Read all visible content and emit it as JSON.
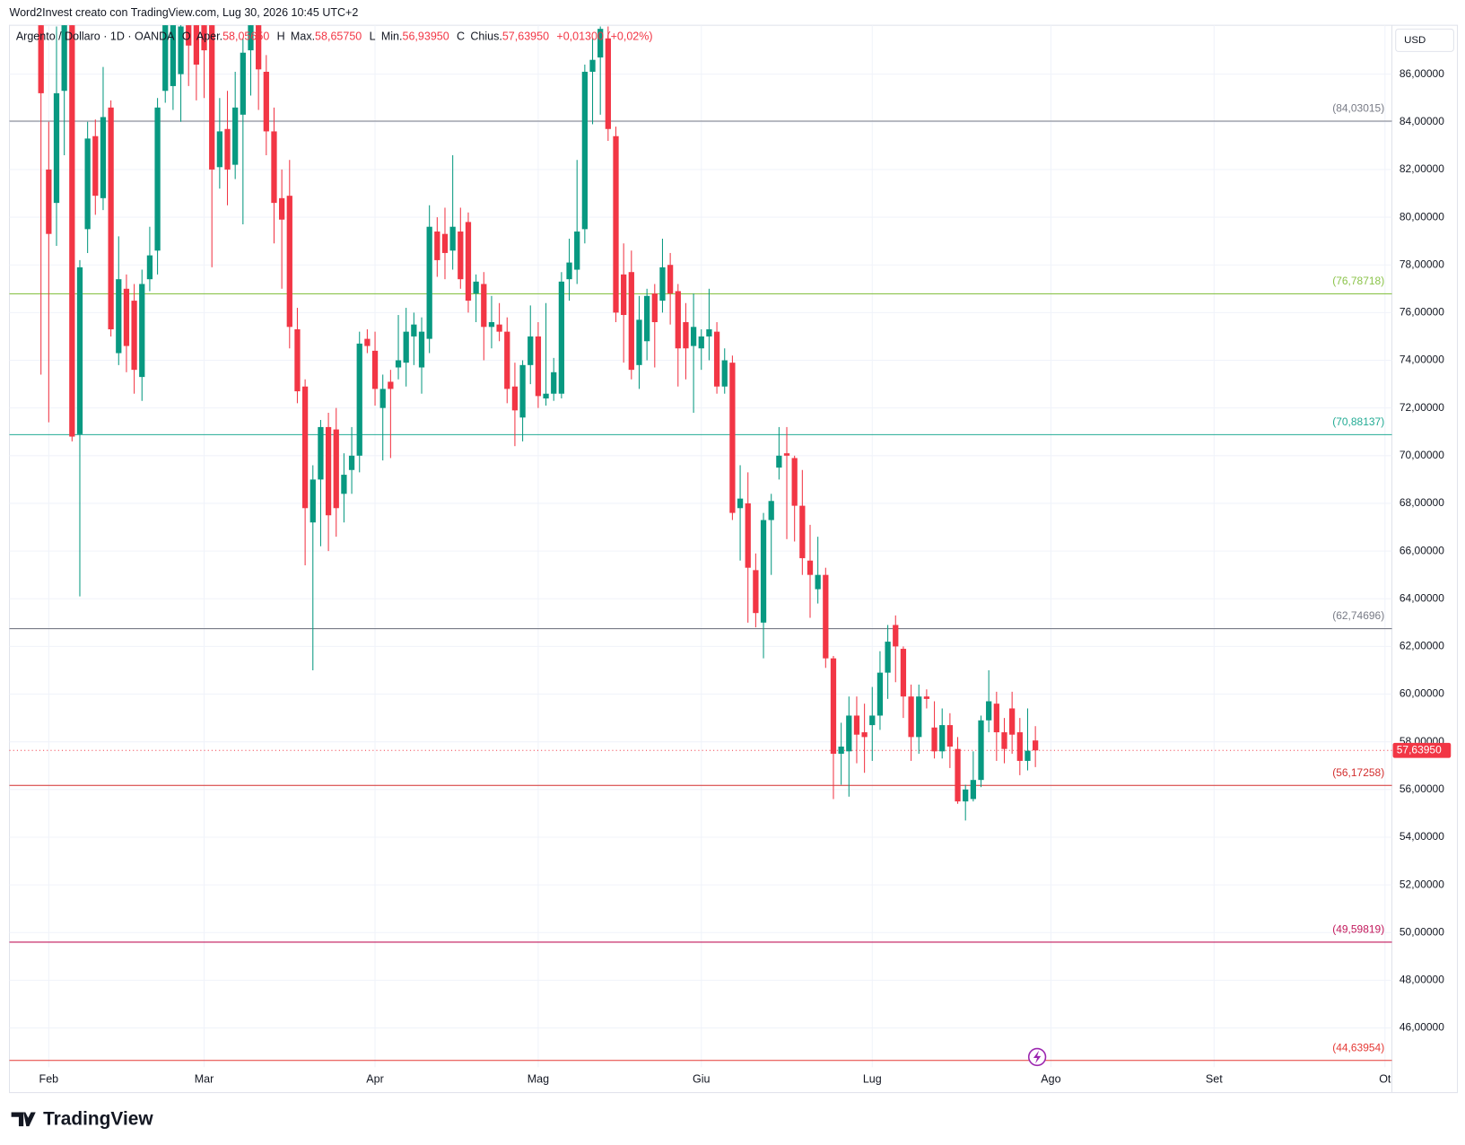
{
  "header": {
    "credit": "Word2Invest creato con TradingView.com, Lug 30, 2026 10:45 UTC+2"
  },
  "chart_data": {
    "type": "candlestick",
    "symbol": "Argento / Dollaro · 1D · OANDA",
    "legend": [
      {
        "key": "O",
        "name": "Aper.",
        "value": "58,05650"
      },
      {
        "key": "H",
        "name": "Max.",
        "value": "58,65750"
      },
      {
        "key": "L",
        "name": "Min.",
        "value": "56,93950"
      },
      {
        "key": "C",
        "name": "Chius.",
        "value": "57,63950"
      }
    ],
    "change": "+0,01300 (+0,02%)",
    "currency": "USD",
    "open": [
      89,
      82.0,
      80.6,
      85.3,
      89.5,
      70.9,
      79.5,
      83.4,
      80.8,
      84.6,
      74.3,
      77.0,
      76.5,
      73.3,
      77.4,
      78.6,
      85.3,
      85.5,
      86,
      89,
      89,
      88.5,
      89,
      82.1,
      83.7,
      82.2,
      84.3,
      87.0,
      89.2,
      86.1,
      83.6,
      80.8,
      80.9,
      75.3,
      72.9,
      67.2,
      69.0,
      71.2,
      71.1,
      68.4,
      69.4,
      70.0,
      74.9,
      74.4,
      72.0,
      73.1,
      73.7,
      73.9,
      75.0,
      73.7,
      74.9,
      79.4,
      79.3,
      78.6,
      79.4,
      79.8,
      76.8,
      77.2,
      75.4,
      75.5,
      75.2,
      72.9,
      71.6,
      73.8,
      75.0,
      72.4,
      72.6,
      72.6,
      77.4,
      77.8,
      79.5,
      86.1,
      86.7,
      87.5,
      83.4,
      77.6,
      77.7,
      73.8,
      74.8,
      76.8,
      76.5,
      78.0,
      76.9,
      75.6,
      74.6,
      74.5,
      75.0,
      75.2,
      72.9,
      73.9,
      67.8,
      68.0,
      65.2,
      63.0,
      67.3,
      69.5,
      70.1,
      69.9,
      67.9,
      65.6,
      64.4,
      65.0,
      61.5,
      57.5,
      57.6,
      59.1,
      58.4,
      58.7,
      59.1,
      60.9,
      62.9,
      61.9,
      59.9,
      58.2,
      59.9,
      58.6,
      57.6,
      58.7,
      57.7,
      55.5,
      55.6,
      56.4,
      58.9,
      59.6,
      58.4,
      59.4,
      58.4,
      57.2,
      58.0565
    ],
    "high": [
      91,
      84.0,
      88,
      91,
      91,
      78.2,
      84.0,
      84.1,
      86.3,
      84.9,
      79.2,
      77.6,
      77.2,
      77.8,
      79.6,
      85.0,
      90,
      90,
      89,
      91,
      91,
      90.5,
      91,
      85.0,
      85.3,
      86.1,
      87.5,
      91,
      91,
      86.8,
      84.6,
      82.0,
      82.4,
      76.2,
      73.2,
      69.6,
      71.5,
      71.8,
      72.0,
      70.1,
      71.2,
      75.2,
      75.3,
      75.2,
      73.4,
      73.6,
      75.9,
      76.2,
      76.0,
      75.8,
      80.5,
      80.0,
      80.4,
      82.6,
      80.4,
      80.2,
      77.6,
      77.7,
      76.7,
      76.4,
      75.8,
      73.9,
      74.0,
      76.3,
      75.6,
      76.4,
      74.1,
      77.7,
      79.1,
      82.4,
      86.4,
      87.5,
      88.0,
      88.0,
      83.8,
      78.9,
      78.6,
      76.7,
      77.0,
      77.2,
      79.1,
      78.5,
      77.2,
      76.4,
      76.8,
      75.3,
      77.0,
      75.6,
      74.5,
      74.2,
      69.6,
      69.3,
      65.9,
      67.6,
      68.4,
      71.2,
      71.2,
      70.0,
      69.4,
      67.1,
      66.6,
      65.3,
      61.6,
      58.8,
      59.9,
      59.9,
      59.6,
      60.3,
      61.8,
      62.9,
      63.3,
      62.0,
      60.4,
      60.4,
      60.2,
      59.7,
      59.4,
      59.2,
      58.2,
      56.2,
      57.6,
      59.1,
      61.0,
      60.1,
      59.0,
      60.1,
      59.0,
      59.4,
      58.6575
    ],
    "low": [
      73.4,
      71.4,
      78.8,
      82.6,
      70.6,
      64.1,
      78.5,
      80.1,
      80.3,
      75.0,
      73.8,
      73.5,
      72.6,
      72.3,
      76.9,
      77.6,
      84.8,
      84.5,
      84,
      85.5,
      84.9,
      85.0,
      77.9,
      81.2,
      80.5,
      81.6,
      79.7,
      85.1,
      84.5,
      82.6,
      78.9,
      77.0,
      74.5,
      72.2,
      65.4,
      61.0,
      66.2,
      66.0,
      66.6,
      67.2,
      68.4,
      69.3,
      74.3,
      72.1,
      69.8,
      69.9,
      73.2,
      72.9,
      73.8,
      72.6,
      74.3,
      77.5,
      77.4,
      77.8,
      77.0,
      76.0,
      75.6,
      74.0,
      74.5,
      74.8,
      72.2,
      70.4,
      70.6,
      73.0,
      72.0,
      72.1,
      72.3,
      72.4,
      76.5,
      77.2,
      78.9,
      83.9,
      84.3,
      83.2,
      75.6,
      73.9,
      73.2,
      72.8,
      74.0,
      73.7,
      76.0,
      75.5,
      72.9,
      73.2,
      71.8,
      73.6,
      74.0,
      72.6,
      72.6,
      67.3,
      65.6,
      63.0,
      62.8,
      61.5,
      65.0,
      69.0,
      66.5,
      66.4,
      65.0,
      63.2,
      63.8,
      61.1,
      55.6,
      56.2,
      55.7,
      57.1,
      56.7,
      57.2,
      58.5,
      59.8,
      60.5,
      59.0,
      57.2,
      57.5,
      59.4,
      57.3,
      57.3,
      56.9,
      55.4,
      54.7,
      55.5,
      56.1,
      58.4,
      57.2,
      57.1,
      57.5,
      56.6,
      56.8,
      56.9395
    ],
    "close": [
      85.2,
      79.3,
      85.2,
      89.5,
      70.8,
      77.9,
      83.3,
      80.9,
      84.2,
      75.3,
      77.4,
      74.6,
      73.6,
      77.2,
      78.4,
      84.6,
      88.5,
      88.8,
      88,
      87.2,
      86.4,
      87.0,
      82.0,
      83.6,
      82.0,
      84.6,
      86.9,
      89.5,
      86.2,
      83.6,
      80.6,
      79.9,
      75.4,
      72.7,
      67.8,
      69.0,
      71.2,
      67.5,
      67.8,
      69.2,
      70.0,
      74.7,
      74.6,
      72.8,
      72.8,
      72.8,
      74.0,
      75.2,
      75.5,
      75.2,
      79.6,
      78.2,
      78.5,
      79.6,
      77.4,
      76.5,
      77.3,
      75.4,
      75.6,
      75.2,
      72.8,
      71.9,
      73.8,
      75.0,
      72.5,
      72.6,
      73.5,
      77.3,
      78.1,
      79.4,
      86.1,
      86.6,
      87.9,
      83.7,
      76.0,
      75.9,
      73.6,
      75.7,
      76.7,
      75.6,
      77.9,
      76.8,
      74.5,
      74.5,
      75.4,
      75.0,
      75.3,
      72.9,
      74.0,
      67.6,
      68.2,
      65.3,
      63.4,
      67.3,
      68.1,
      70.0,
      70.0,
      67.9,
      65.7,
      65.0,
      65.0,
      61.5,
      57.5,
      57.8,
      59.1,
      58.3,
      58.2,
      59.1,
      60.9,
      62.2,
      62.0,
      59.9,
      58.2,
      59.9,
      59.8,
      57.6,
      58.7,
      57.8,
      55.5,
      56.0,
      56.4,
      58.9,
      59.7,
      58.4,
      57.7,
      58.3,
      57.2,
      57.6265,
      57.6395
    ],
    "up_color": "#089981",
    "down_color": "#f23645",
    "xlim": [
      -4.06,
      173.89
    ],
    "xticks": [
      {
        "value": 1,
        "label": "Feb"
      },
      {
        "value": 21,
        "label": "Mar"
      },
      {
        "value": 43,
        "label": "Apr"
      },
      {
        "value": 64,
        "label": "Mag"
      },
      {
        "value": 85,
        "label": "Giu"
      },
      {
        "value": 107,
        "label": "Lug"
      },
      {
        "value": 130,
        "label": "Ago"
      },
      {
        "value": 151,
        "label": "Set"
      },
      {
        "value": 173,
        "label": "Ot"
      }
    ],
    "ylim": [
      44.35,
      88.05
    ],
    "yticks": [
      {
        "value": 46,
        "label": "46,00000"
      },
      {
        "value": 48,
        "label": "48,00000"
      },
      {
        "value": 50,
        "label": "50,00000"
      },
      {
        "value": 52,
        "label": "52,00000"
      },
      {
        "value": 54,
        "label": "54,00000"
      },
      {
        "value": 56,
        "label": "56,00000"
      },
      {
        "value": 58,
        "label": "58,00000"
      },
      {
        "value": 60,
        "label": "60,00000"
      },
      {
        "value": 62,
        "label": "62,00000"
      },
      {
        "value": 64,
        "label": "64,00000"
      },
      {
        "value": 66,
        "label": "66,00000"
      },
      {
        "value": 68,
        "label": "68,00000"
      },
      {
        "value": 70,
        "label": "70,00000"
      },
      {
        "value": 72,
        "label": "72,00000"
      },
      {
        "value": 74,
        "label": "74,00000"
      },
      {
        "value": 76,
        "label": "76,00000"
      },
      {
        "value": 78,
        "label": "78,00000"
      },
      {
        "value": 80,
        "label": "80,00000"
      },
      {
        "value": 82,
        "label": "82,00000"
      },
      {
        "value": 84,
        "label": "84,00000"
      },
      {
        "value": 86,
        "label": "86,00000"
      }
    ],
    "grid": true,
    "levels": [
      {
        "value": 84.03015,
        "label": "(84,03015)",
        "color": "#787b86"
      },
      {
        "value": 76.78718,
        "label": "(76,78718)",
        "color": "#8bc34a"
      },
      {
        "value": 70.88137,
        "label": "(70,88137)",
        "color": "#22ab94"
      },
      {
        "value": 62.74696,
        "label": "(62,74696)",
        "color": "#787b86"
      },
      {
        "value": 56.17258,
        "label": "(56,17258)",
        "color": "#d32f2f"
      },
      {
        "value": 49.59819,
        "label": "(49,59819)",
        "color": "#c2185b"
      },
      {
        "value": 44.63954,
        "label": "(44,63954)",
        "color": "#e53935"
      }
    ],
    "last_price": {
      "value": 57.6395,
      "label": "57,63950",
      "color": "#f23645"
    }
  },
  "footer": {
    "brand": "TradingView"
  }
}
